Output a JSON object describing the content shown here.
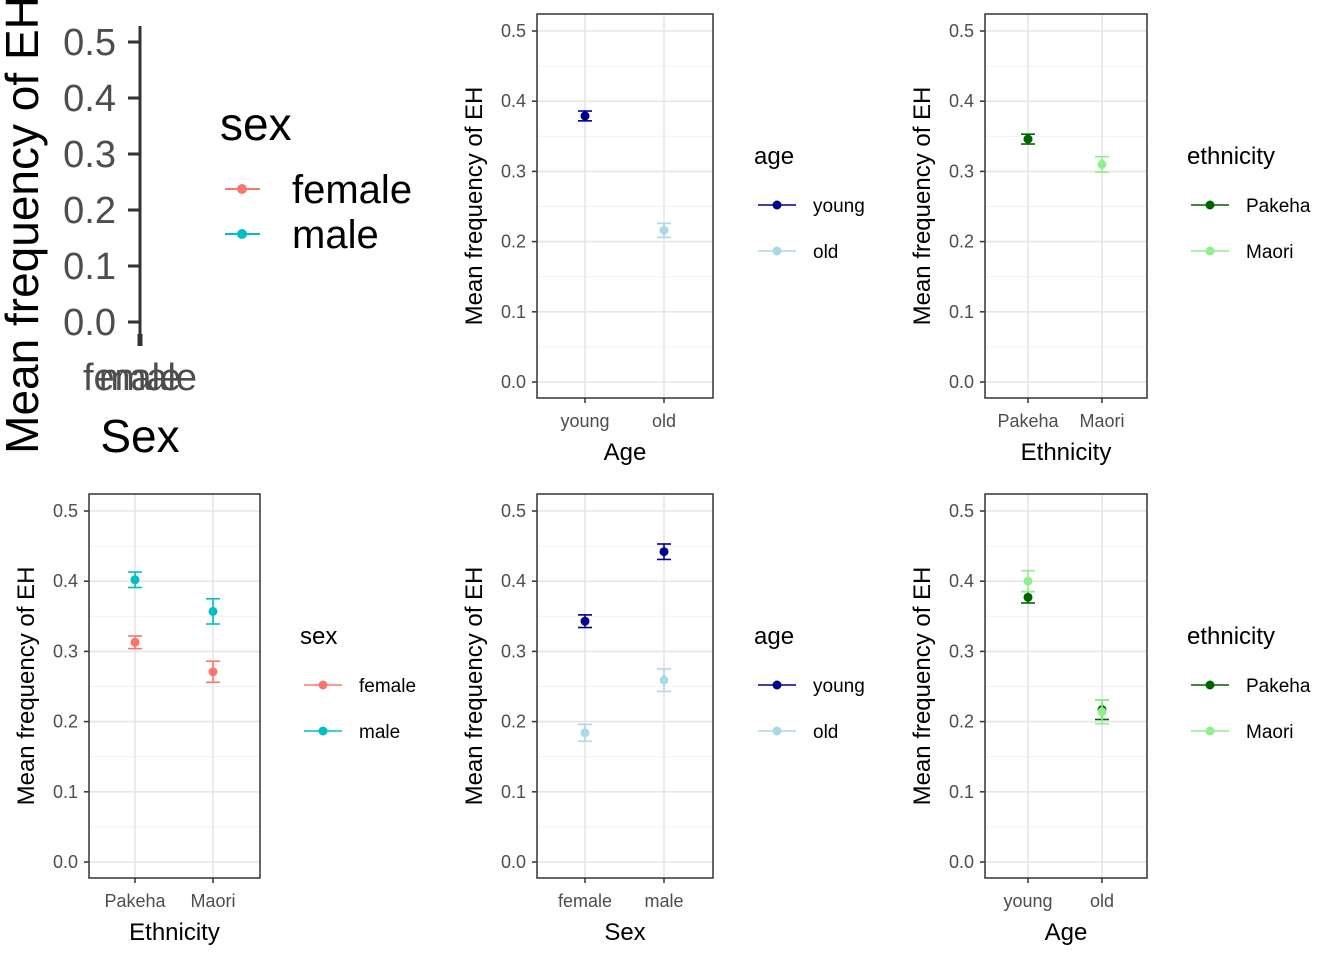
{
  "chart_data": [
    {
      "type": "scatter",
      "style": "pointrange",
      "xlabel": "Sex",
      "ylabel": "Mean frequency of EH",
      "categories": [
        "female",
        "male"
      ],
      "yticks": [
        "0.0",
        "0.1",
        "0.2",
        "0.3",
        "0.4",
        "0.5"
      ],
      "ylim": [
        0,
        0.5
      ],
      "legend_title": "sex",
      "legend_position": "right",
      "series": [
        {
          "name": "female",
          "color": "#F8766D",
          "values": []
        },
        {
          "name": "male",
          "color": "#00BFC4",
          "values": []
        }
      ],
      "note": "collapsed panel: no data area visible"
    },
    {
      "type": "scatter",
      "style": "pointrange",
      "xlabel": "Age",
      "ylabel": "Mean frequency of EH",
      "categories": [
        "young",
        "old"
      ],
      "yticks": [
        "0.0",
        "0.1",
        "0.2",
        "0.3",
        "0.4",
        "0.5"
      ],
      "ylim": [
        0,
        0.5
      ],
      "grid": true,
      "legend_title": "age",
      "legend_position": "right",
      "series": [
        {
          "name": "young",
          "color": "#00008B",
          "points": [
            {
              "x": "young",
              "y": 0.379,
              "lo": 0.372,
              "hi": 0.386
            }
          ]
        },
        {
          "name": "old",
          "color": "#ADD8E6",
          "points": [
            {
              "x": "old",
              "y": 0.216,
              "lo": 0.206,
              "hi": 0.226
            }
          ]
        }
      ]
    },
    {
      "type": "scatter",
      "style": "pointrange",
      "xlabel": "Ethnicity",
      "ylabel": "Mean frequency of EH",
      "categories": [
        "Pakeha",
        "Maori"
      ],
      "yticks": [
        "0.0",
        "0.1",
        "0.2",
        "0.3",
        "0.4",
        "0.5"
      ],
      "ylim": [
        0,
        0.5
      ],
      "grid": true,
      "legend_title": "ethnicity",
      "legend_position": "right",
      "series": [
        {
          "name": "Pakeha",
          "color": "#006400",
          "points": [
            {
              "x": "Pakeha",
              "y": 0.346,
              "lo": 0.339,
              "hi": 0.353
            }
          ]
        },
        {
          "name": "Maori",
          "color": "#90EE90",
          "points": [
            {
              "x": "Maori",
              "y": 0.31,
              "lo": 0.299,
              "hi": 0.321
            }
          ]
        }
      ]
    },
    {
      "type": "scatter",
      "style": "pointrange",
      "xlabel": "Ethnicity",
      "ylabel": "Mean frequency of EH",
      "categories": [
        "Pakeha",
        "Maori"
      ],
      "yticks": [
        "0.0",
        "0.1",
        "0.2",
        "0.3",
        "0.4",
        "0.5"
      ],
      "ylim": [
        0,
        0.5
      ],
      "grid": true,
      "legend_title": "sex",
      "legend_position": "right",
      "series": [
        {
          "name": "female",
          "color": "#F8766D",
          "points": [
            {
              "x": "Pakeha",
              "y": 0.313,
              "lo": 0.304,
              "hi": 0.322
            },
            {
              "x": "Maori",
              "y": 0.271,
              "lo": 0.256,
              "hi": 0.286
            }
          ]
        },
        {
          "name": "male",
          "color": "#00BFC4",
          "points": [
            {
              "x": "Pakeha",
              "y": 0.402,
              "lo": 0.391,
              "hi": 0.413
            },
            {
              "x": "Maori",
              "y": 0.357,
              "lo": 0.339,
              "hi": 0.375
            }
          ]
        }
      ]
    },
    {
      "type": "scatter",
      "style": "pointrange",
      "xlabel": "Sex",
      "ylabel": "Mean frequency of EH",
      "categories": [
        "female",
        "male"
      ],
      "yticks": [
        "0.0",
        "0.1",
        "0.2",
        "0.3",
        "0.4",
        "0.5"
      ],
      "ylim": [
        0,
        0.5
      ],
      "grid": true,
      "legend_title": "age",
      "legend_position": "right",
      "series": [
        {
          "name": "young",
          "color": "#00008B",
          "points": [
            {
              "x": "female",
              "y": 0.343,
              "lo": 0.334,
              "hi": 0.352
            },
            {
              "x": "male",
              "y": 0.442,
              "lo": 0.431,
              "hi": 0.453
            }
          ]
        },
        {
          "name": "old",
          "color": "#ADD8E6",
          "points": [
            {
              "x": "female",
              "y": 0.184,
              "lo": 0.172,
              "hi": 0.196
            },
            {
              "x": "male",
              "y": 0.259,
              "lo": 0.243,
              "hi": 0.275
            }
          ]
        }
      ]
    },
    {
      "type": "scatter",
      "style": "pointrange",
      "xlabel": "Age",
      "ylabel": "Mean frequency of EH",
      "categories": [
        "young",
        "old"
      ],
      "yticks": [
        "0.0",
        "0.1",
        "0.2",
        "0.3",
        "0.4",
        "0.5"
      ],
      "ylim": [
        0,
        0.5
      ],
      "grid": true,
      "legend_title": "ethnicity",
      "legend_position": "right",
      "series": [
        {
          "name": "Pakeha",
          "color": "#006400",
          "points": [
            {
              "x": "young",
              "y": 0.377,
              "lo": 0.369,
              "hi": 0.385
            },
            {
              "x": "old",
              "y": 0.217,
              "lo": 0.203,
              "hi": 0.231
            }
          ]
        },
        {
          "name": "Maori",
          "color": "#90EE90",
          "points": [
            {
              "x": "young",
              "y": 0.4,
              "lo": 0.385,
              "hi": 0.415
            },
            {
              "x": "old",
              "y": 0.214,
              "lo": 0.197,
              "hi": 0.231
            }
          ]
        }
      ]
    }
  ]
}
